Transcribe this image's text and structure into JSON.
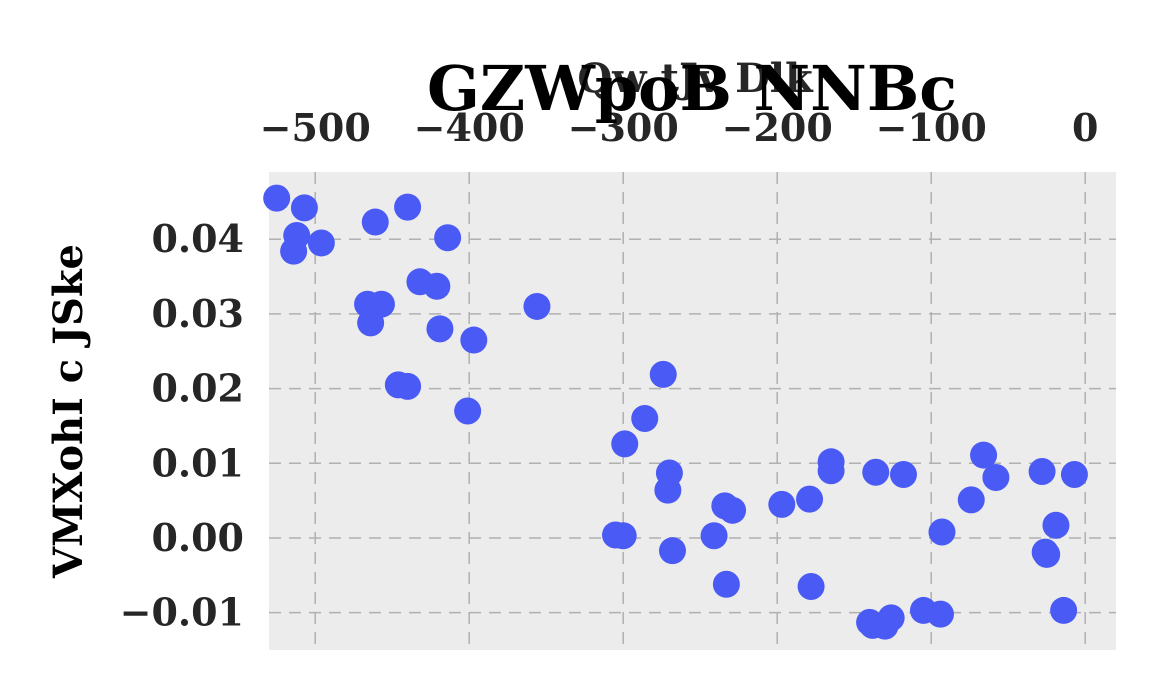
{
  "chart_data": {
    "type": "scatter",
    "title": "GZWpoB NNBc",
    "xlabel": "Qw tJv Dlk",
    "ylabel": "VMXohI c JSke",
    "xaxis_position": "top",
    "grid": true,
    "xlim": [
      -530,
      20
    ],
    "ylim": [
      -0.015,
      0.049
    ],
    "xticks": [
      -500,
      -400,
      -300,
      -200,
      -100,
      0
    ],
    "xtick_labels": [
      "−500",
      "−400",
      "−300",
      "−200",
      "−100",
      "0"
    ],
    "yticks": [
      -0.01,
      0.0,
      0.01,
      0.02,
      0.03,
      0.04
    ],
    "ytick_labels": [
      "−0.01",
      "0.00",
      "0.01",
      "0.02",
      "0.03",
      "0.04"
    ],
    "colors": {
      "points": "#4a5af5",
      "plot_bg": "#ececec",
      "grid": "#b0b0b0"
    },
    "series": [
      {
        "x": [
          -525,
          -507,
          -512,
          -514,
          -496,
          -457,
          -461,
          -440,
          -464,
          -432,
          -414,
          -421,
          -440,
          -419,
          -397,
          -401,
          -466,
          -446,
          -356,
          -305,
          -299,
          -286,
          -271,
          -270,
          -274,
          -268,
          -300,
          -241,
          -234,
          -229,
          -233,
          -197,
          -179,
          -165,
          -165,
          -178,
          -136,
          -118,
          -105,
          -140,
          -138,
          -130,
          -126,
          -94,
          -93,
          -74,
          -66,
          -58,
          -28,
          -26,
          -25,
          -14,
          -19,
          -7
        ],
        "y": [
          0.0455,
          0.0442,
          0.0405,
          0.0384,
          0.0395,
          0.0313,
          0.0423,
          0.0443,
          0.0288,
          0.0343,
          0.0402,
          0.0337,
          0.0203,
          0.028,
          0.0265,
          0.017,
          0.0313,
          0.0205,
          0.031,
          0.0004,
          0.0126,
          0.016,
          0.0064,
          0.0087,
          0.0219,
          -0.0017,
          0.0003,
          0.0003,
          0.0043,
          0.0037,
          -0.0062,
          0.0045,
          0.0052,
          0.0102,
          0.009,
          -0.0065,
          0.0088,
          0.0085,
          -0.0097,
          -0.0113,
          -0.0117,
          -0.0118,
          -0.0107,
          -0.0102,
          0.0008,
          0.0051,
          0.0111,
          0.0081,
          0.0089,
          -0.0019,
          -0.0022,
          -0.0097,
          0.0017,
          0.0085
        ]
      }
    ]
  }
}
